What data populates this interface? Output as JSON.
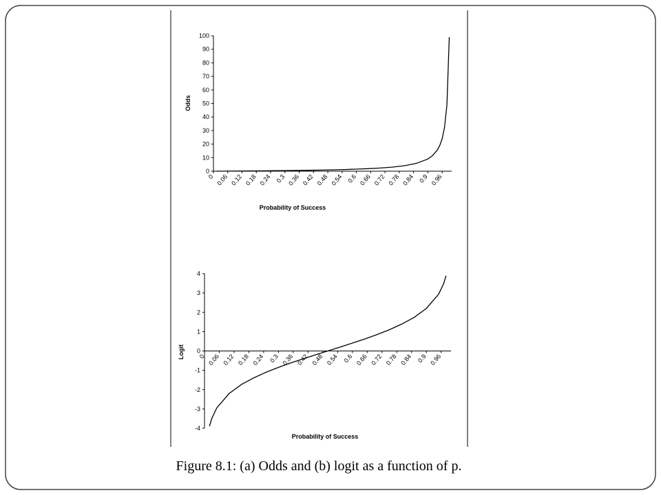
{
  "chart_data": [
    {
      "type": "line",
      "ylabel": "Odds",
      "xlabel": "Probability of Success",
      "color": "#000000",
      "x": [
        0.01,
        0.05,
        0.1,
        0.15,
        0.2,
        0.25,
        0.3,
        0.35,
        0.4,
        0.45,
        0.5,
        0.55,
        0.6,
        0.65,
        0.7,
        0.75,
        0.8,
        0.85,
        0.9,
        0.92,
        0.94,
        0.95,
        0.96,
        0.97,
        0.98,
        0.99
      ],
      "values": [
        0.01,
        0.05,
        0.11,
        0.18,
        0.25,
        0.33,
        0.43,
        0.54,
        0.67,
        0.82,
        1,
        1.22,
        1.5,
        1.86,
        2.33,
        3,
        4,
        5.67,
        9,
        11.5,
        15.67,
        19,
        24,
        32.33,
        49,
        99
      ],
      "xlim": [
        0,
        1
      ],
      "ylim": [
        0,
        100
      ],
      "xticks": [
        0,
        0.06,
        0.12,
        0.18,
        0.24,
        0.3,
        0.36,
        0.42,
        0.48,
        0.54,
        0.6,
        0.66,
        0.72,
        0.78,
        0.84,
        0.9,
        0.96
      ],
      "yticks": [
        0,
        10,
        20,
        30,
        40,
        50,
        60,
        70,
        80,
        90,
        100
      ]
    },
    {
      "type": "line",
      "ylabel": "Logit",
      "xlabel": "Probability of Success",
      "color": "#000000",
      "x": [
        0.02,
        0.03,
        0.05,
        0.1,
        0.15,
        0.2,
        0.25,
        0.3,
        0.35,
        0.4,
        0.45,
        0.5,
        0.55,
        0.6,
        0.65,
        0.7,
        0.75,
        0.8,
        0.85,
        0.9,
        0.95,
        0.97,
        0.98
      ],
      "values": [
        -3.89,
        -3.48,
        -2.94,
        -2.2,
        -1.73,
        -1.39,
        -1.1,
        -0.85,
        -0.62,
        -0.41,
        -0.2,
        0,
        0.2,
        0.41,
        0.62,
        0.85,
        1.1,
        1.39,
        1.73,
        2.2,
        2.94,
        3.48,
        3.89
      ],
      "xlim": [
        0,
        1
      ],
      "ylim": [
        -4,
        4
      ],
      "xticks": [
        0,
        0.06,
        0.12,
        0.18,
        0.24,
        0.3,
        0.36,
        0.42,
        0.48,
        0.54,
        0.6,
        0.66,
        0.72,
        0.78,
        0.84,
        0.9,
        0.96
      ],
      "yticks": [
        -4,
        -3,
        -2,
        -1,
        0,
        1,
        2,
        3,
        4
      ]
    }
  ],
  "caption": "Figure 8.1: (a) Odds and (b) logit as a function of p."
}
